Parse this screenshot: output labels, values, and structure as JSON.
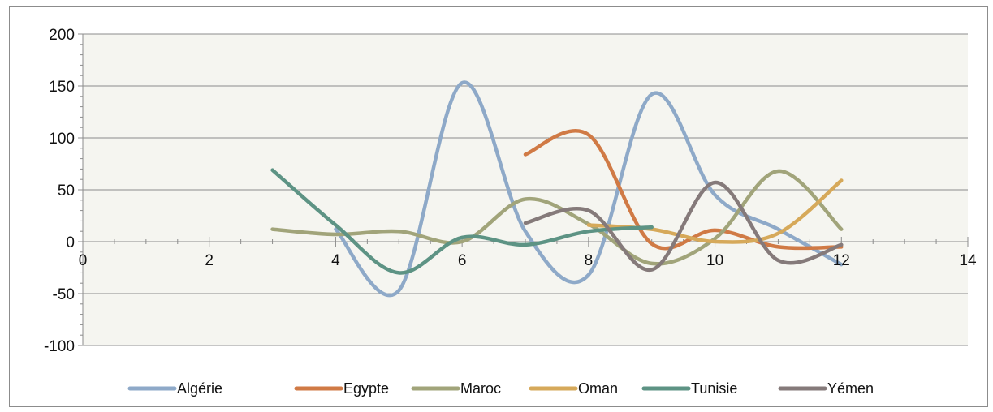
{
  "chart_data": {
    "type": "line",
    "smooth": true,
    "title": "",
    "xlabel": "",
    "ylabel": "",
    "xlim": [
      0,
      14
    ],
    "ylim": [
      -100,
      200
    ],
    "x_ticks": [
      0,
      2,
      4,
      6,
      8,
      10,
      12,
      14
    ],
    "y_ticks": [
      -100,
      -50,
      0,
      50,
      100,
      150,
      200
    ],
    "x_tick_labels": [
      "0",
      "2",
      "4",
      "6",
      "8",
      "10",
      "12",
      "14"
    ],
    "y_tick_labels": [
      "-100",
      "-50",
      "0",
      "50",
      "100",
      "150",
      "200"
    ],
    "grid": "horizontal",
    "plot_background": "#f5f5f0",
    "legend_position": "bottom",
    "series": [
      {
        "name": "Algérie",
        "color": "#8ea9c8",
        "x": [
          4,
          5,
          6,
          7,
          8,
          9,
          10,
          11,
          12
        ],
        "y": [
          12,
          -47,
          153,
          10,
          -32,
          142,
          45,
          12,
          -22
        ]
      },
      {
        "name": "Egypte",
        "color": "#d07a45",
        "x": [
          7,
          8,
          9,
          10,
          11,
          12
        ],
        "y": [
          84,
          103,
          -2,
          11,
          -5,
          -5
        ]
      },
      {
        "name": "Maroc",
        "color": "#a1a47a",
        "x": [
          3,
          4,
          5,
          6,
          7,
          8,
          9,
          10,
          11,
          12
        ],
        "y": [
          12,
          7,
          10,
          0,
          41,
          17,
          -21,
          3,
          68,
          12
        ]
      },
      {
        "name": "Oman",
        "color": "#d6a95a",
        "x": [
          8,
          9,
          10,
          11,
          12
        ],
        "y": [
          16,
          12,
          0,
          8,
          59
        ]
      },
      {
        "name": "Tunisie",
        "color": "#5d9384",
        "x": [
          3,
          4,
          5,
          6,
          7,
          8,
          9
        ],
        "y": [
          69,
          16,
          -30,
          4,
          -3,
          10,
          14
        ]
      },
      {
        "name": "Yémen",
        "color": "#857a7a",
        "x": [
          7,
          8,
          9,
          10,
          11,
          12
        ],
        "y": [
          18,
          30,
          -27,
          57,
          -18,
          -3
        ]
      }
    ]
  }
}
